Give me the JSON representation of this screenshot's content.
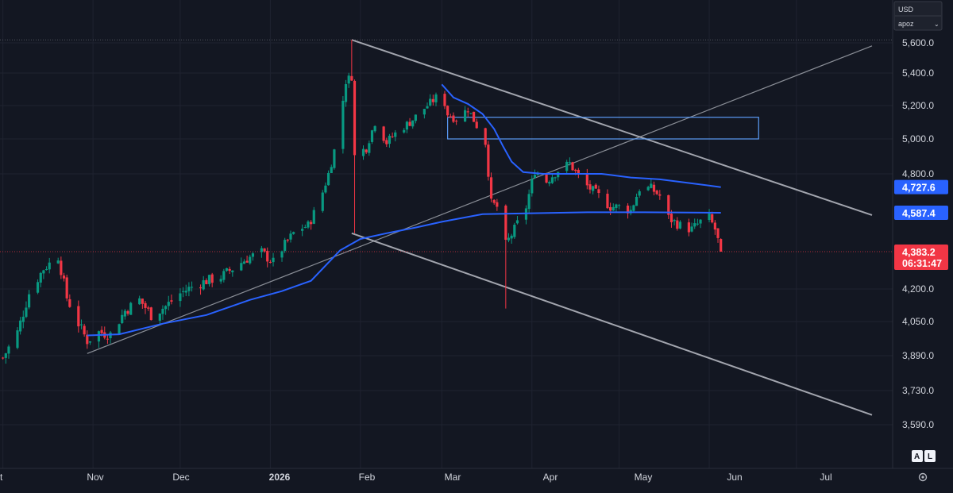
{
  "window": {
    "currency_label": "USD",
    "scale_mode_label": "apoz",
    "auto_button": "A",
    "log_button": "L"
  },
  "colors": {
    "background": "#131722",
    "grid": "#1f2330",
    "text": "#d1d4dc",
    "up_candle": "#089981",
    "down_candle": "#f23645",
    "moving_average": "#2962ff",
    "trendline": "#b2b5be",
    "rectangle": "#5b9cf6",
    "price_badge": "#f23645",
    "ma_badge": "#2962ff"
  },
  "chart_data": {
    "type": "candlestick",
    "instrument_currency": "USD",
    "y_ticks": [
      "5,600.0",
      "5,400.0",
      "5,200.0",
      "5,000.0",
      "4,800.0",
      "4,200.0",
      "4,050.0",
      "3,890.0",
      "3,730.0",
      "3,590.0"
    ],
    "x_labels": [
      "t",
      "Nov",
      "Dec",
      "2026",
      "Feb",
      "Mar",
      "Apr",
      "May",
      "Jun",
      "Jul"
    ],
    "last_price": "4,383.2",
    "countdown": "06:31:47",
    "moving_average_values": {
      "fast": "4,727.6",
      "slow": "4,587.4"
    },
    "series": [
      {
        "name": "",
        "kind": "ohlc",
        "close_path": [
          [
            "2025-10-01",
            3880
          ],
          [
            "2025-10-06",
            4000
          ],
          [
            "2025-10-10",
            4180
          ],
          [
            "2025-10-15",
            4300
          ],
          [
            "2025-10-20",
            4360
          ],
          [
            "2025-10-23",
            4160
          ],
          [
            "2025-10-27",
            4040
          ],
          [
            "2025-10-30",
            3960
          ],
          [
            "2025-11-03",
            4000
          ],
          [
            "2025-11-07",
            3990
          ],
          [
            "2025-11-12",
            4100
          ],
          [
            "2025-11-17",
            4150
          ],
          [
            "2025-11-21",
            4080
          ],
          [
            "2025-11-26",
            4120
          ],
          [
            "2025-12-01",
            4180
          ],
          [
            "2025-12-05",
            4210
          ],
          [
            "2025-12-10",
            4240
          ],
          [
            "2025-12-15",
            4260
          ],
          [
            "2025-12-19",
            4300
          ],
          [
            "2025-12-24",
            4350
          ],
          [
            "2025-12-29",
            4380
          ],
          [
            "2026-01-02",
            4330
          ],
          [
            "2026-01-06",
            4420
          ],
          [
            "2026-01-10",
            4500
          ],
          [
            "2026-01-14",
            4520
          ],
          [
            "2026-01-18",
            4650
          ],
          [
            "2026-01-21",
            4800
          ],
          [
            "2026-01-24",
            5000
          ],
          [
            "2026-01-27",
            5350
          ],
          [
            "2026-01-29",
            5380
          ],
          [
            "2026-01-30",
            4900
          ],
          [
            "2026-02-03",
            4950
          ],
          [
            "2026-02-06",
            5100
          ],
          [
            "2026-02-10",
            4980
          ],
          [
            "2026-02-14",
            5050
          ],
          [
            "2026-02-18",
            5100
          ],
          [
            "2026-02-24",
            5200
          ],
          [
            "2026-03-01",
            5280
          ],
          [
            "2026-03-03",
            5150
          ],
          [
            "2026-03-06",
            5120
          ],
          [
            "2026-03-10",
            5180
          ],
          [
            "2026-03-13",
            5080
          ],
          [
            "2026-03-16",
            4980
          ],
          [
            "2026-03-18",
            4640
          ],
          [
            "2026-03-20",
            4620
          ],
          [
            "2026-03-23",
            4420
          ],
          [
            "2026-03-26",
            4500
          ],
          [
            "2026-03-30",
            4620
          ],
          [
            "2026-04-02",
            4820
          ],
          [
            "2026-04-06",
            4760
          ],
          [
            "2026-04-10",
            4820
          ],
          [
            "2026-04-14",
            4860
          ],
          [
            "2026-04-18",
            4760
          ],
          [
            "2026-04-21",
            4720
          ],
          [
            "2026-04-24",
            4680
          ],
          [
            "2026-04-28",
            4620
          ],
          [
            "2026-05-01",
            4620
          ],
          [
            "2026-05-05",
            4600
          ],
          [
            "2026-05-08",
            4720
          ],
          [
            "2026-05-12",
            4720
          ],
          [
            "2026-05-15",
            4680
          ],
          [
            "2026-05-18",
            4560
          ],
          [
            "2026-05-22",
            4520
          ],
          [
            "2026-05-26",
            4500
          ],
          [
            "2026-05-29",
            4540
          ],
          [
            "2026-06-01",
            4560
          ],
          [
            "2026-06-03",
            4500
          ],
          [
            "2026-06-05",
            4383.2
          ]
        ],
        "spikes": [
          [
            "2026-01-29",
            5620
          ],
          [
            "2026-01-30",
            4480
          ],
          [
            "2026-03-01",
            5420
          ],
          [
            "2026-03-23",
            4110
          ]
        ]
      }
    ],
    "moving_averages": [
      {
        "name": "",
        "value": "4,727.6",
        "points": [
          [
            "2026-03-01",
            5330
          ],
          [
            "2026-03-05",
            5250
          ],
          [
            "2026-03-10",
            5210
          ],
          [
            "2026-03-15",
            5150
          ],
          [
            "2026-03-19",
            5060
          ],
          [
            "2026-03-22",
            4960
          ],
          [
            "2026-03-25",
            4870
          ],
          [
            "2026-03-29",
            4810
          ],
          [
            "2026-04-05",
            4800
          ],
          [
            "2026-04-15",
            4800
          ],
          [
            "2026-04-25",
            4800
          ],
          [
            "2026-05-05",
            4780
          ],
          [
            "2026-05-15",
            4770
          ],
          [
            "2026-05-25",
            4750
          ],
          [
            "2026-06-05",
            4727.6
          ]
        ]
      },
      {
        "name": "",
        "value": "4,587.4",
        "points": [
          [
            "2025-10-30",
            3985
          ],
          [
            "2025-11-10",
            3990
          ],
          [
            "2025-11-25",
            4040
          ],
          [
            "2025-12-10",
            4080
          ],
          [
            "2025-12-25",
            4150
          ],
          [
            "2026-01-05",
            4190
          ],
          [
            "2026-01-15",
            4240
          ],
          [
            "2026-01-25",
            4390
          ],
          [
            "2026-02-01",
            4450
          ],
          [
            "2026-02-10",
            4480
          ],
          [
            "2026-02-20",
            4510
          ],
          [
            "2026-03-01",
            4540
          ],
          [
            "2026-03-15",
            4580
          ],
          [
            "2026-04-01",
            4585
          ],
          [
            "2026-04-20",
            4590
          ],
          [
            "2026-05-10",
            4590
          ],
          [
            "2026-06-05",
            4587.4
          ]
        ]
      }
    ],
    "drawings": [
      {
        "kind": "trendline",
        "from": [
          "2026-01-29",
          5620
        ],
        "to": [
          "2026-07-27",
          4575
        ]
      },
      {
        "kind": "trendline",
        "from": [
          "2026-01-29",
          4480
        ],
        "to": [
          "2026-07-27",
          3630
        ]
      },
      {
        "kind": "trendline",
        "from": [
          "2025-10-30",
          3900
        ],
        "to": [
          "2026-07-27",
          5580
        ]
      },
      {
        "kind": "rectangle",
        "from": [
          "2026-03-03",
          5130
        ],
        "to": [
          "2026-06-18",
          5000
        ]
      },
      {
        "kind": "horizontal_line",
        "value": 4383.2,
        "style": "dotted"
      },
      {
        "kind": "horizontal_line",
        "value": 5620,
        "style": "dotted"
      }
    ],
    "ylim": [
      3540,
      5680
    ],
    "xlim": [
      "2025-10-01",
      "2026-07-31"
    ],
    "grid": true,
    "legend": "none"
  }
}
